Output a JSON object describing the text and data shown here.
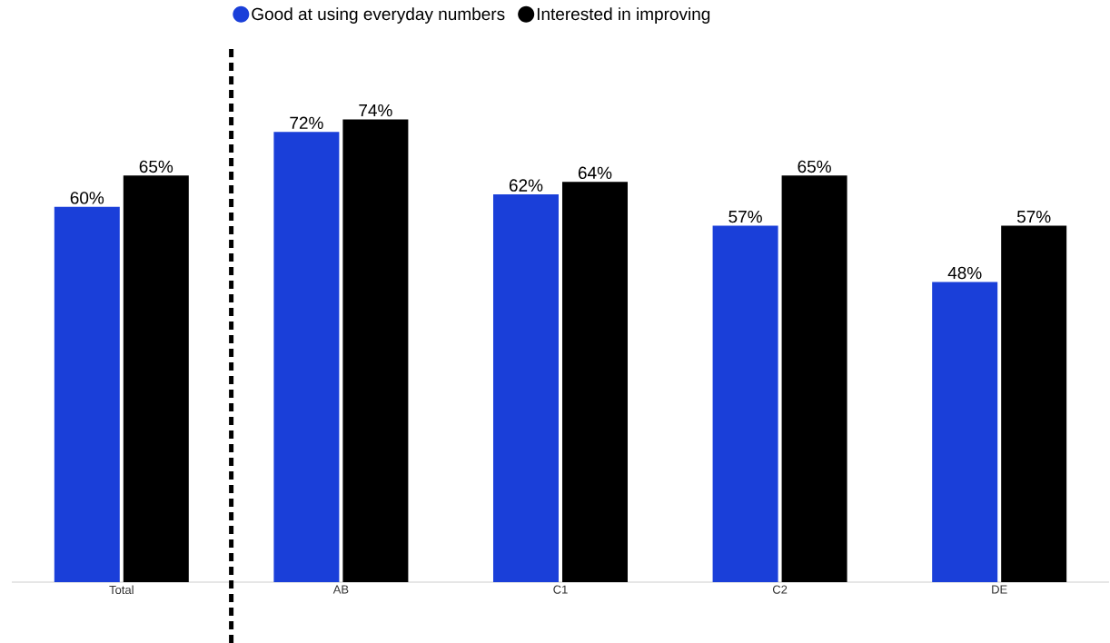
{
  "chart_data": {
    "type": "bar",
    "categories": [
      "Total",
      "AB",
      "C1",
      "C2",
      "DE"
    ],
    "series": [
      {
        "name": "Good at using everyday numbers",
        "color": "#1a3fd9",
        "values": [
          60,
          72,
          62,
          57,
          48
        ],
        "value_labels": [
          "60%",
          "72%",
          "62%",
          "57%",
          "48%"
        ]
      },
      {
        "name": "Interested in improving",
        "color": "#000000",
        "values": [
          65,
          74,
          64,
          65,
          57
        ],
        "value_labels": [
          "65%",
          "74%",
          "64%",
          "65%",
          "57%"
        ]
      }
    ],
    "tick_labels": "x",
    "legend": "top"
  }
}
